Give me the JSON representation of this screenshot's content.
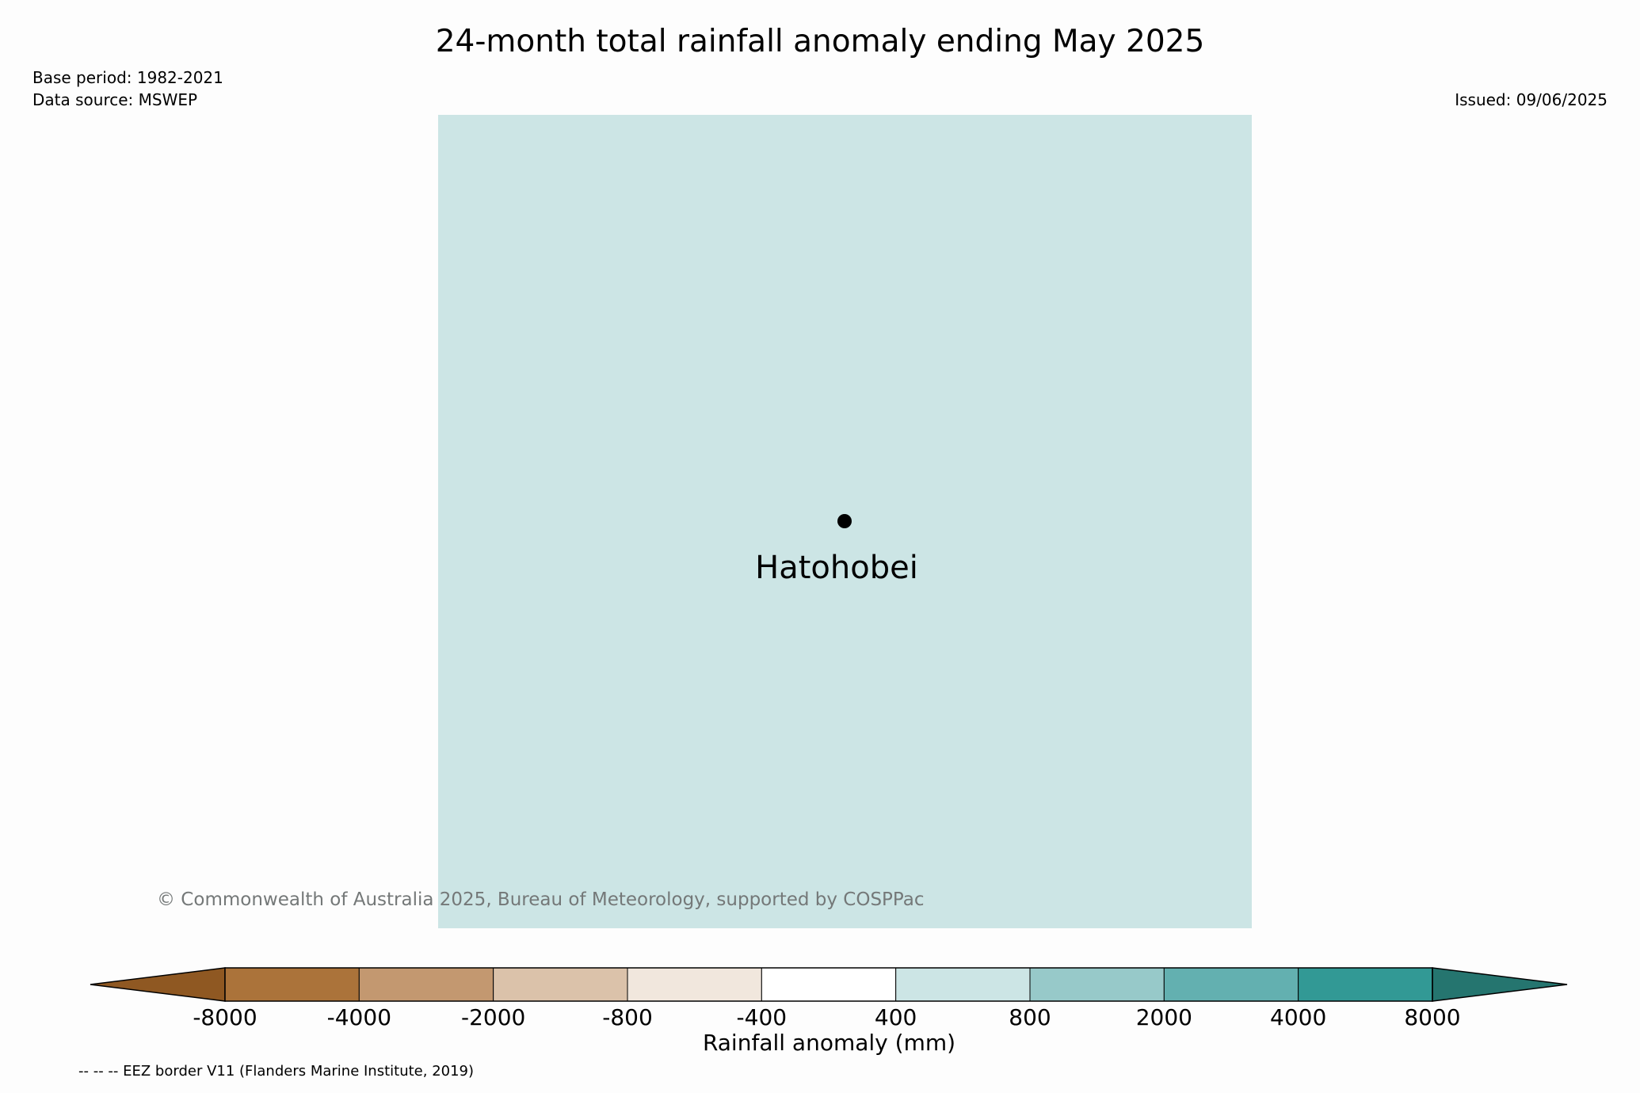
{
  "title": "24-month total rainfall anomaly ending May 2025",
  "base_period": "Base period: 1982-2021",
  "data_source": "Data source: MSWEP",
  "issued": "Issued: 09/06/2025",
  "map": {
    "fill_color": "#cce5e5",
    "location_label": "Hatohobei",
    "location_marker_icon": "point-marker"
  },
  "copyright": "© Commonwealth of Australia 2025, Bureau of Meteorology, supported by COSPPac",
  "colorbar": {
    "label": "Rainfall anomaly (mm)",
    "ticks": [
      "-8000",
      "-4000",
      "-2000",
      "-800",
      "-400",
      "400",
      "800",
      "2000",
      "4000",
      "8000"
    ],
    "under_color": "#8f5822",
    "over_color": "#25756f",
    "colors": [
      "#ab733a",
      "#c39870",
      "#dbc2aa",
      "#f1e7dd",
      "#ffffff",
      "#cce5e5",
      "#97c9c9",
      "#63b0b0",
      "#329995"
    ]
  },
  "footer": "-- -- -- EEZ border V11 (Flanders Marine Institute, 2019)"
}
